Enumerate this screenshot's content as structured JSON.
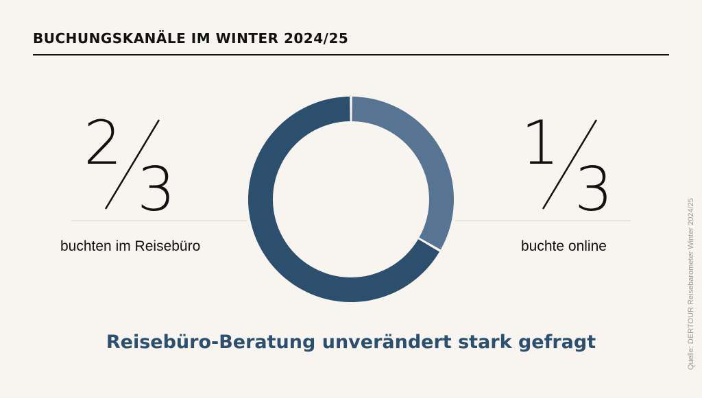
{
  "title": "BUCHUNGSKANÄLE IM WINTER 2024/25",
  "chart_data": {
    "type": "pie",
    "categories": [
      "buchten im Reisebüro",
      "buchte online"
    ],
    "values": [
      0.6667,
      0.3333
    ],
    "colors": [
      "#2b4f6d",
      "#577492"
    ],
    "donut": true
  },
  "left": {
    "numerator": "2",
    "denominator": "3",
    "caption": "buchten im Reisebüro"
  },
  "right": {
    "numerator": "1",
    "denominator": "3",
    "caption": "buchte online"
  },
  "headline": "Reisebüro-Beratung unverändert stark gefragt",
  "source": "Quelle: DERTOUR Reisebarometer Winter 2024/25",
  "colors": {
    "dark": "#2b4f6d",
    "light": "#577492",
    "background": "#f8f5f1"
  }
}
